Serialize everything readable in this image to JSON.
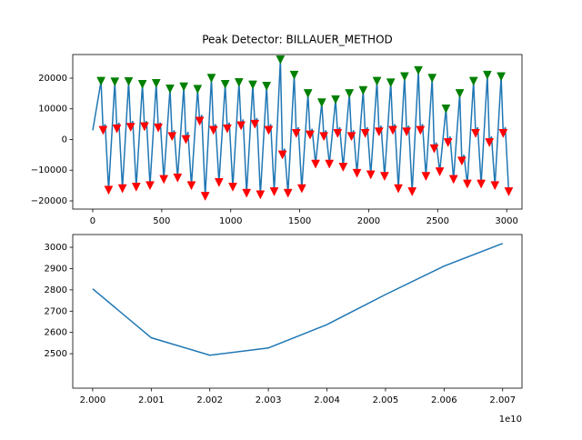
{
  "chart_data": [
    {
      "type": "line",
      "title": "Peak Detector: BILLAUER_METHOD",
      "xlim": [
        -145,
        3111
      ],
      "ylim": [
        -22670,
        27700
      ],
      "xticks": [
        0,
        500,
        1000,
        1500,
        2000,
        2500,
        3000
      ],
      "yticks": [
        {
          "value": -20000,
          "label": "−20000"
        },
        {
          "value": -10000,
          "label": "−10000"
        },
        0,
        10000,
        20000
      ],
      "series": [
        {
          "color": "#1f77b4",
          "marker": "none",
          "x": [
            0,
            60,
            75,
            90,
            115,
            160,
            175,
            190,
            215,
            260,
            275,
            290,
            315,
            360,
            375,
            390,
            415,
            460,
            475,
            490,
            515,
            560,
            575,
            590,
            615,
            660,
            675,
            690,
            715,
            760,
            775,
            790,
            815,
            860,
            875,
            890,
            915,
            960,
            975,
            990,
            1015,
            1060,
            1075,
            1090,
            1115,
            1160,
            1175,
            1190,
            1215,
            1260,
            1275,
            1290,
            1315,
            1360,
            1375,
            1390,
            1415,
            1460,
            1475,
            1490,
            1515,
            1560,
            1575,
            1590,
            1615,
            1660,
            1675,
            1690,
            1715,
            1760,
            1775,
            1790,
            1815,
            1860,
            1875,
            1890,
            1915,
            1960,
            1975,
            1990,
            2015,
            2060,
            2075,
            2090,
            2115,
            2160,
            2175,
            2190,
            2215,
            2260,
            2275,
            2290,
            2315,
            2360,
            2375,
            2390,
            2415,
            2460,
            2475,
            2490,
            2515,
            2560,
            2575,
            2590,
            2615,
            2660,
            2675,
            2690,
            2715,
            2760,
            2775,
            2790,
            2815,
            2860,
            2875,
            2890,
            2915,
            2960,
            2975,
            2990,
            3015
          ],
          "values": [
            3000,
            19000,
            3000,
            5000,
            -16500,
            18800,
            3500,
            5500,
            -16000,
            18900,
            4000,
            6000,
            -15500,
            18000,
            4200,
            6000,
            -15000,
            18300,
            3800,
            5500,
            -13000,
            16500,
            1000,
            3000,
            -12500,
            17200,
            0,
            2500,
            -15000,
            16400,
            6000,
            8000,
            -18500,
            20000,
            3000,
            5000,
            -14000,
            18000,
            3500,
            5500,
            -15500,
            18600,
            4500,
            6500,
            -17500,
            17800,
            5000,
            7000,
            -18000,
            17400,
            3000,
            5000,
            -17000,
            26000,
            -5000,
            -3000,
            -17500,
            21000,
            2000,
            4000,
            -16000,
            15000,
            1500,
            3500,
            -8000,
            12000,
            1000,
            3000,
            -8000,
            13000,
            2000,
            4000,
            -9000,
            15000,
            1000,
            3000,
            -11000,
            16000,
            2000,
            4000,
            -11500,
            19000,
            2500,
            4500,
            -12000,
            18500,
            3000,
            5000,
            -16000,
            20500,
            2500,
            4500,
            -17000,
            22500,
            3000,
            5000,
            -12000,
            20000,
            -3000,
            -1000,
            -10500,
            10000,
            -1000,
            1000,
            -13000,
            15000,
            -7000,
            -5000,
            -14500,
            19000,
            2000,
            4000,
            -14500,
            21000,
            -1000,
            1000,
            -15000,
            20500,
            2000,
            4000,
            -17000
          ]
        },
        {
          "color": "#008000",
          "marker": "triangle-down",
          "x": [
            60,
            160,
            260,
            360,
            460,
            560,
            660,
            760,
            860,
            960,
            1060,
            1160,
            1260,
            1360,
            1460,
            1560,
            1660,
            1760,
            1860,
            1960,
            2060,
            2160,
            2260,
            2360,
            2460,
            2560,
            2660,
            2760,
            2860,
            2960
          ],
          "values": [
            19000,
            18800,
            18900,
            18000,
            18300,
            16500,
            17200,
            16400,
            20000,
            18000,
            18600,
            17800,
            17400,
            26000,
            21000,
            15000,
            12000,
            13000,
            15000,
            16000,
            19000,
            18500,
            20500,
            22500,
            20000,
            10000,
            15000,
            19000,
            21000,
            20500
          ]
        },
        {
          "color": "#ff0000",
          "marker": "triangle-down",
          "x": [
            75,
            115,
            175,
            215,
            275,
            315,
            375,
            415,
            475,
            515,
            575,
            615,
            675,
            715,
            775,
            815,
            875,
            915,
            975,
            1015,
            1075,
            1115,
            1175,
            1215,
            1275,
            1315,
            1375,
            1415,
            1475,
            1515,
            1575,
            1615,
            1675,
            1715,
            1775,
            1815,
            1875,
            1915,
            1975,
            2015,
            2075,
            2115,
            2175,
            2215,
            2275,
            2315,
            2375,
            2415,
            2475,
            2515,
            2575,
            2615,
            2675,
            2715,
            2775,
            2815,
            2875,
            2915,
            2975,
            3015
          ],
          "values": [
            3000,
            -16500,
            3500,
            -16000,
            4000,
            -15500,
            4200,
            -15000,
            3800,
            -13000,
            1000,
            -12500,
            0,
            -15000,
            6000,
            -18500,
            3000,
            -14000,
            3500,
            -15500,
            4500,
            -17500,
            5000,
            -18000,
            3000,
            -17000,
            -5000,
            -17500,
            2000,
            -16000,
            1500,
            -8000,
            1000,
            -8000,
            2000,
            -9000,
            1000,
            -11000,
            2000,
            -11500,
            2500,
            -12000,
            3000,
            -16000,
            2500,
            -17000,
            3000,
            -12000,
            -3000,
            -10500,
            -1000,
            -13000,
            -7000,
            -14500,
            2000,
            -14500,
            -1000,
            -15000,
            2000,
            -17000
          ]
        }
      ]
    },
    {
      "type": "line",
      "xlim": [
        19996600000,
        20073300000
      ],
      "ylim": [
        2338,
        3060
      ],
      "xticks": [
        {
          "value": 20000000000,
          "label": "2.000"
        },
        {
          "value": 20010000000,
          "label": "2.001"
        },
        {
          "value": 20020000000,
          "label": "2.002"
        },
        {
          "value": 20030000000,
          "label": "2.003"
        },
        {
          "value": 20040000000,
          "label": "2.004"
        },
        {
          "value": 20050000000,
          "label": "2.005"
        },
        {
          "value": 20060000000,
          "label": "2.006"
        },
        {
          "value": 20070000000,
          "label": "2.007"
        }
      ],
      "x_offset_label": "1e10",
      "yticks": [
        2500,
        2600,
        2700,
        2800,
        2900,
        3000
      ],
      "series": [
        {
          "color": "#1f77b4",
          "marker": "none",
          "x": [
            20000000000,
            20010000000,
            20020000000,
            20030000000,
            20040000000,
            20050000000,
            20060000000,
            20070000000
          ],
          "values": [
            2805,
            2575,
            2493,
            2527,
            2637,
            2778,
            2912,
            3018
          ]
        }
      ]
    }
  ]
}
